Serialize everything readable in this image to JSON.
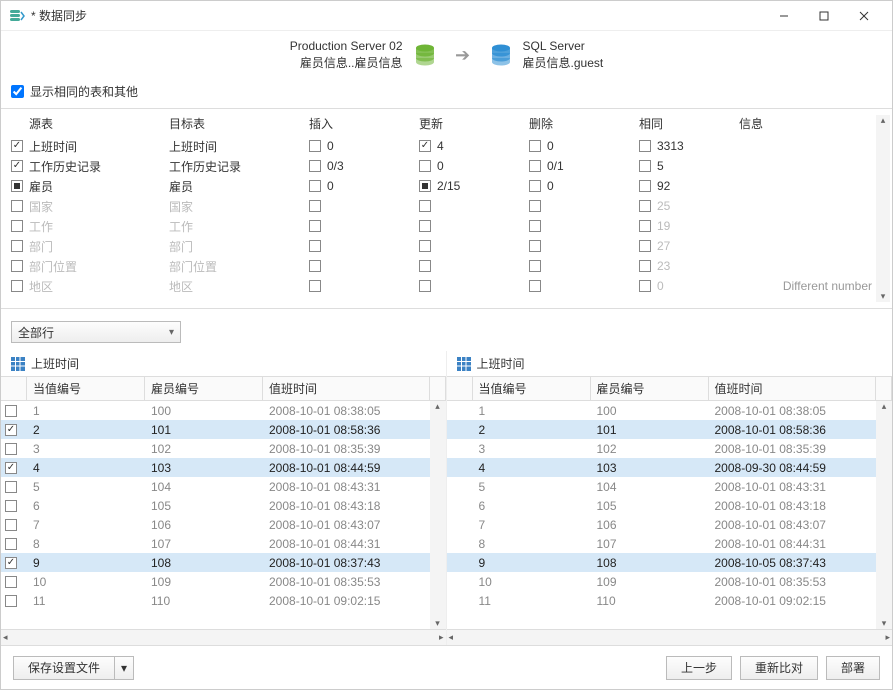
{
  "window": {
    "title": "* 数据同步"
  },
  "servers": {
    "left_name": "Production Server 02",
    "left_db": "雇员信息..雇员信息",
    "right_name": "SQL Server",
    "right_db": "雇员信息.guest",
    "left_color": "#6fb536",
    "right_color": "#2f8fd4"
  },
  "option_checkbox_label": "显示相同的表和其他",
  "table_cols": {
    "source": "源表",
    "target": "目标表",
    "insert": "插入",
    "update": "更新",
    "delete": "删除",
    "same": "相同",
    "info": "信息"
  },
  "tables": [
    {
      "check": "checked",
      "source": "上班时间",
      "target": "上班时间",
      "insert": "0",
      "insert_c": false,
      "update": "4",
      "update_c": true,
      "delete": "0",
      "delete_c": false,
      "same": "3313",
      "info": "",
      "disabled": false
    },
    {
      "check": "checked",
      "source": "工作历史记录",
      "target": "工作历史记录",
      "insert": "0/3",
      "insert_c": false,
      "update": "0",
      "update_c": false,
      "delete": "0/1",
      "delete_c": false,
      "same": "5",
      "info": "",
      "disabled": false
    },
    {
      "check": "indeterminate",
      "source": "雇员",
      "target": "雇员",
      "insert": "0",
      "insert_c": false,
      "update": "2/15",
      "update_c": "ind",
      "delete": "0",
      "delete_c": false,
      "same": "92",
      "info": "",
      "disabled": false
    },
    {
      "check": "none",
      "source": "国家",
      "target": "国家",
      "insert": "",
      "insert_c": false,
      "update": "",
      "update_c": false,
      "delete": "",
      "delete_c": false,
      "same": "25",
      "info": "",
      "disabled": true
    },
    {
      "check": "none",
      "source": "工作",
      "target": "工作",
      "insert": "",
      "insert_c": false,
      "update": "",
      "update_c": false,
      "delete": "",
      "delete_c": false,
      "same": "19",
      "info": "",
      "disabled": true
    },
    {
      "check": "none",
      "source": "部门",
      "target": "部门",
      "insert": "",
      "insert_c": false,
      "update": "",
      "update_c": false,
      "delete": "",
      "delete_c": false,
      "same": "27",
      "info": "",
      "disabled": true
    },
    {
      "check": "none",
      "source": "部门位置",
      "target": "部门位置",
      "insert": "",
      "insert_c": false,
      "update": "",
      "update_c": false,
      "delete": "",
      "delete_c": false,
      "same": "23",
      "info": "",
      "disabled": true
    },
    {
      "check": "none",
      "source": "地区",
      "target": "地区",
      "insert": "",
      "insert_c": false,
      "update": "",
      "update_c": false,
      "delete": "",
      "delete_c": false,
      "same": "0",
      "info": "Different number",
      "disabled": true
    }
  ],
  "filter_label": "全部行",
  "grid": {
    "title": "上班时间",
    "col1": "当值编号",
    "col2": "雇员编号",
    "col3": "值班时间",
    "left_rows": [
      {
        "c1": "1",
        "c2": "100",
        "c3": "2008-10-01 08:38:05",
        "hl": false,
        "ck": false
      },
      {
        "c1": "2",
        "c2": "101",
        "c3": "2008-10-01 08:58:36",
        "hl": true,
        "ck": true
      },
      {
        "c1": "3",
        "c2": "102",
        "c3": "2008-10-01 08:35:39",
        "hl": false,
        "ck": false
      },
      {
        "c1": "4",
        "c2": "103",
        "c3": "2008-10-01 08:44:59",
        "hl": true,
        "ck": true
      },
      {
        "c1": "5",
        "c2": "104",
        "c3": "2008-10-01 08:43:31",
        "hl": false,
        "ck": false
      },
      {
        "c1": "6",
        "c2": "105",
        "c3": "2008-10-01 08:43:18",
        "hl": false,
        "ck": false
      },
      {
        "c1": "7",
        "c2": "106",
        "c3": "2008-10-01 08:43:07",
        "hl": false,
        "ck": false
      },
      {
        "c1": "8",
        "c2": "107",
        "c3": "2008-10-01 08:44:31",
        "hl": false,
        "ck": false
      },
      {
        "c1": "9",
        "c2": "108",
        "c3": "2008-10-01 08:37:43",
        "hl": true,
        "ck": true
      },
      {
        "c1": "10",
        "c2": "109",
        "c3": "2008-10-01 08:35:53",
        "hl": false,
        "ck": false
      },
      {
        "c1": "11",
        "c2": "110",
        "c3": "2008-10-01 09:02:15",
        "hl": false,
        "ck": false
      }
    ],
    "right_rows": [
      {
        "c1": "1",
        "c2": "100",
        "c3": "2008-10-01 08:38:05",
        "hl": false,
        "ck": false
      },
      {
        "c1": "2",
        "c2": "101",
        "c3": "2008-10-01 08:58:36",
        "hl": true,
        "ck": false
      },
      {
        "c1": "3",
        "c2": "102",
        "c3": "2008-10-01 08:35:39",
        "hl": false,
        "ck": false
      },
      {
        "c1": "4",
        "c2": "103",
        "c3": "2008-09-30 08:44:59",
        "hl": true,
        "ck": false
      },
      {
        "c1": "5",
        "c2": "104",
        "c3": "2008-10-01 08:43:31",
        "hl": false,
        "ck": false
      },
      {
        "c1": "6",
        "c2": "105",
        "c3": "2008-10-01 08:43:18",
        "hl": false,
        "ck": false
      },
      {
        "c1": "7",
        "c2": "106",
        "c3": "2008-10-01 08:43:07",
        "hl": false,
        "ck": false
      },
      {
        "c1": "8",
        "c2": "107",
        "c3": "2008-10-01 08:44:31",
        "hl": false,
        "ck": false
      },
      {
        "c1": "9",
        "c2": "108",
        "c3": "2008-10-05 08:37:43",
        "hl": true,
        "ck": false
      },
      {
        "c1": "10",
        "c2": "109",
        "c3": "2008-10-01 08:35:53",
        "hl": false,
        "ck": false
      },
      {
        "c1": "11",
        "c2": "110",
        "c3": "2008-10-01 09:02:15",
        "hl": false,
        "ck": false
      }
    ]
  },
  "footer": {
    "save_settings": "保存设置文件",
    "prev": "上一步",
    "recompare": "重新比对",
    "deploy": "部署"
  }
}
